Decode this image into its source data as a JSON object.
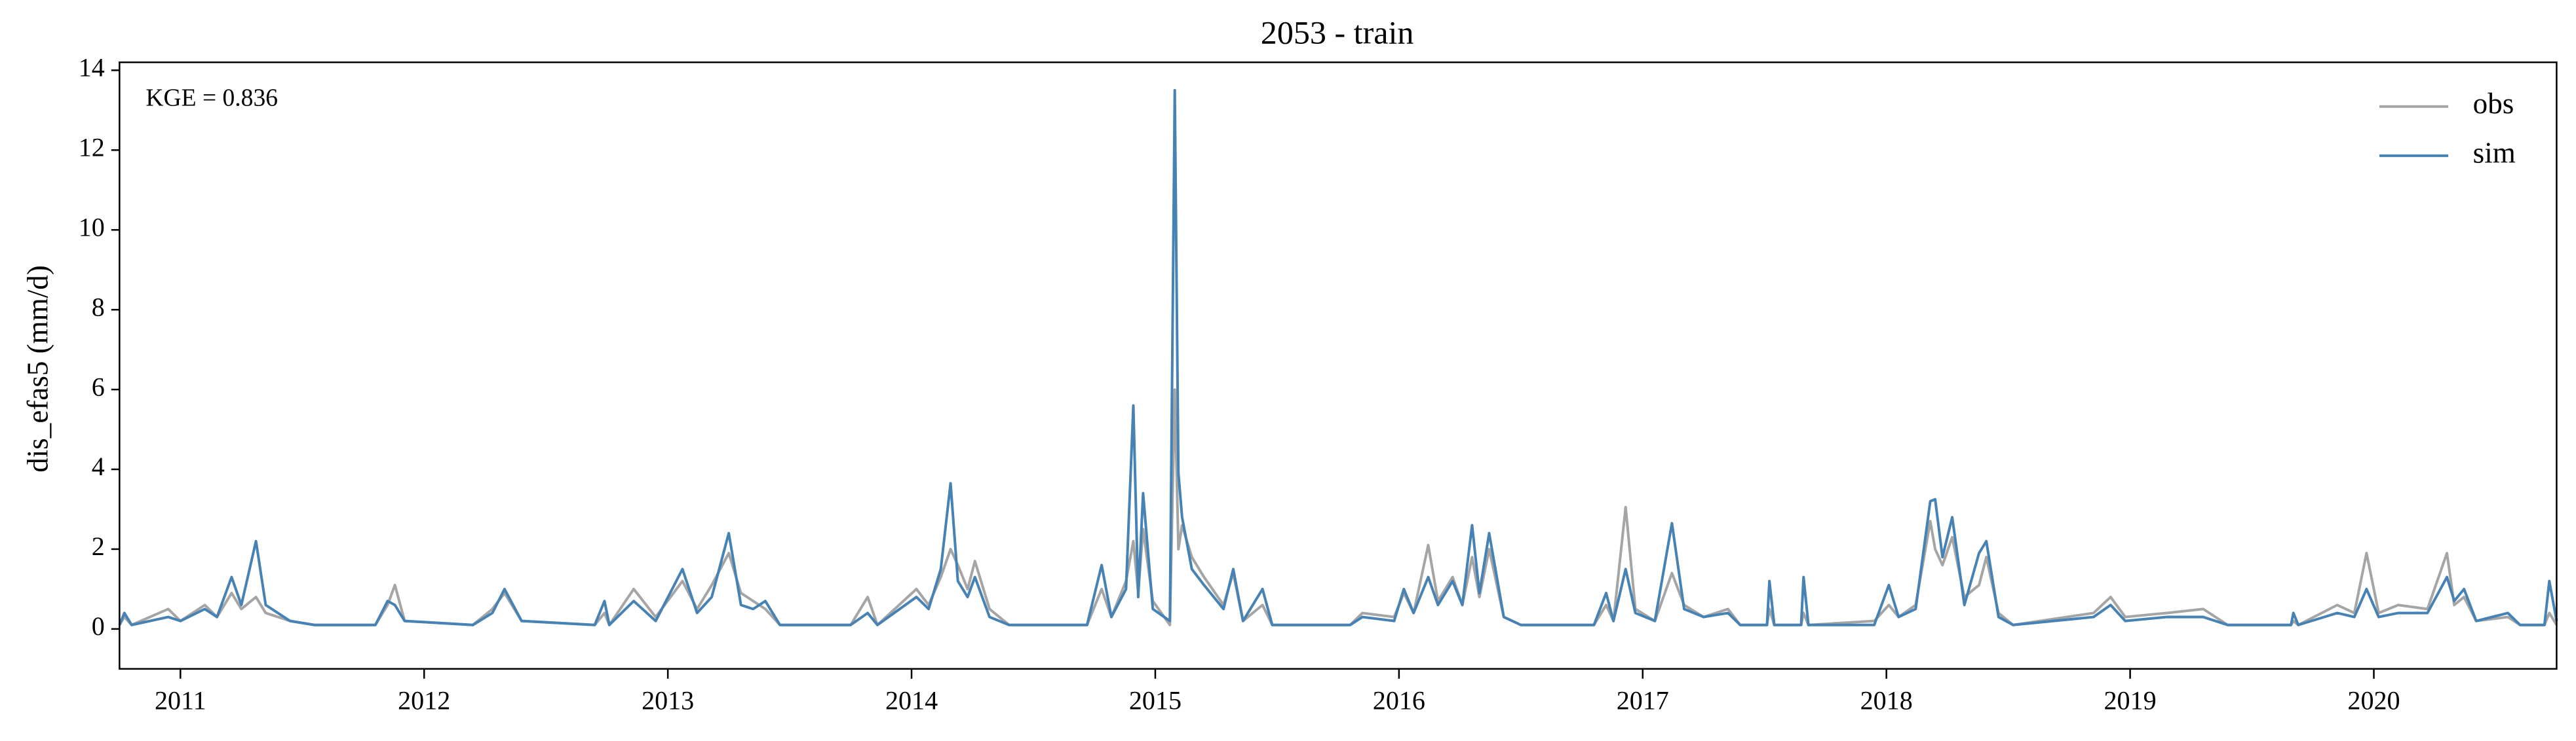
{
  "chart_data": {
    "type": "line",
    "title": "2053 - train",
    "ylabel": "dis_efas5 (mm/d)",
    "annotation": "KGE = 0.836",
    "x": [
      2010.75,
      2010.77,
      2010.8,
      2010.95,
      2011.0,
      2011.1,
      2011.15,
      2011.21,
      2011.25,
      2011.31,
      2011.35,
      2011.45,
      2011.55,
      2011.8,
      2011.85,
      2011.88,
      2011.92,
      2012.2,
      2012.28,
      2012.33,
      2012.4,
      2012.7,
      2012.74,
      2012.76,
      2012.86,
      2012.95,
      2013.06,
      2013.12,
      2013.18,
      2013.25,
      2013.3,
      2013.35,
      2013.4,
      2013.46,
      2013.75,
      2013.82,
      2013.86,
      2014.02,
      2014.07,
      2014.12,
      2014.16,
      2014.19,
      2014.23,
      2014.26,
      2014.32,
      2014.4,
      2014.72,
      2014.78,
      2014.82,
      2014.88,
      2014.91,
      2014.93,
      2014.95,
      2014.99,
      2015.06,
      2015.08,
      2015.095,
      2015.11,
      2015.15,
      2015.2,
      2015.28,
      2015.32,
      2015.36,
      2015.44,
      2015.48,
      2015.8,
      2015.85,
      2015.98,
      2016.02,
      2016.06,
      2016.12,
      2016.16,
      2016.22,
      2016.26,
      2016.3,
      2016.33,
      2016.37,
      2016.43,
      2016.5,
      2016.8,
      2016.85,
      2016.88,
      2016.93,
      2016.97,
      2017.05,
      2017.12,
      2017.17,
      2017.25,
      2017.35,
      2017.4,
      2017.51,
      2017.52,
      2017.54,
      2017.65,
      2017.66,
      2017.68,
      2017.95,
      2018.01,
      2018.05,
      2018.12,
      2018.18,
      2018.2,
      2018.23,
      2018.27,
      2018.32,
      2018.38,
      2018.41,
      2018.46,
      2018.52,
      2018.85,
      2018.92,
      2018.98,
      2019.15,
      2019.3,
      2019.4,
      2019.66,
      2019.67,
      2019.69,
      2019.85,
      2019.92,
      2019.97,
      2020.02,
      2020.1,
      2020.22,
      2020.3,
      2020.33,
      2020.37,
      2020.42,
      2020.55,
      2020.6,
      2020.7,
      2020.72,
      2020.75
    ],
    "series": [
      {
        "name": "obs",
        "color": "#a5a5a5",
        "values": [
          0.1,
          0.3,
          0.1,
          0.5,
          0.2,
          0.6,
          0.3,
          0.9,
          0.5,
          0.8,
          0.4,
          0.2,
          0.1,
          0.1,
          0.6,
          1.1,
          0.2,
          0.1,
          0.5,
          0.9,
          0.2,
          0.1,
          0.4,
          0.1,
          1.0,
          0.3,
          1.2,
          0.5,
          1.1,
          1.9,
          0.9,
          0.7,
          0.5,
          0.1,
          0.1,
          0.8,
          0.1,
          1.0,
          0.6,
          1.3,
          2.0,
          1.6,
          1.0,
          1.7,
          0.5,
          0.1,
          0.1,
          1.0,
          0.3,
          1.2,
          2.2,
          0.9,
          2.5,
          0.7,
          0.1,
          6.0,
          2.0,
          2.6,
          1.8,
          1.3,
          0.6,
          1.4,
          0.2,
          0.6,
          0.1,
          0.1,
          0.4,
          0.3,
          0.9,
          0.4,
          2.1,
          0.7,
          1.3,
          0.6,
          1.8,
          0.8,
          2.0,
          0.3,
          0.1,
          0.1,
          0.6,
          0.2,
          3.05,
          0.5,
          0.2,
          1.4,
          0.6,
          0.3,
          0.5,
          0.1,
          0.1,
          0.5,
          0.1,
          0.1,
          0.4,
          0.1,
          0.2,
          0.6,
          0.3,
          0.6,
          2.7,
          2.0,
          1.6,
          2.3,
          0.8,
          1.1,
          1.8,
          0.4,
          0.1,
          0.4,
          0.8,
          0.3,
          0.4,
          0.5,
          0.1,
          0.1,
          0.2,
          0.1,
          0.6,
          0.4,
          1.9,
          0.4,
          0.6,
          0.5,
          1.9,
          0.6,
          0.8,
          0.2,
          0.3,
          0.1,
          0.1,
          0.4,
          0.1
        ]
      },
      {
        "name": "sim",
        "color": "#4682b4",
        "values": [
          0.1,
          0.4,
          0.1,
          0.3,
          0.2,
          0.5,
          0.3,
          1.3,
          0.6,
          2.2,
          0.6,
          0.2,
          0.1,
          0.1,
          0.7,
          0.6,
          0.2,
          0.1,
          0.4,
          1.0,
          0.2,
          0.1,
          0.7,
          0.1,
          0.7,
          0.2,
          1.5,
          0.4,
          0.8,
          2.4,
          0.6,
          0.5,
          0.7,
          0.1,
          0.1,
          0.4,
          0.1,
          0.8,
          0.5,
          1.5,
          3.65,
          1.2,
          0.8,
          1.3,
          0.3,
          0.1,
          0.1,
          1.6,
          0.3,
          1.0,
          5.6,
          0.8,
          3.4,
          0.5,
          0.2,
          13.5,
          3.9,
          2.8,
          1.5,
          1.1,
          0.5,
          1.5,
          0.2,
          1.0,
          0.1,
          0.1,
          0.3,
          0.2,
          1.0,
          0.4,
          1.3,
          0.6,
          1.2,
          0.6,
          2.6,
          0.9,
          2.4,
          0.3,
          0.1,
          0.1,
          0.9,
          0.2,
          1.5,
          0.4,
          0.2,
          2.65,
          0.5,
          0.3,
          0.4,
          0.1,
          0.1,
          1.2,
          0.1,
          0.1,
          1.3,
          0.1,
          0.1,
          1.1,
          0.3,
          0.5,
          3.2,
          3.25,
          1.8,
          2.8,
          0.6,
          1.9,
          2.2,
          0.3,
          0.1,
          0.3,
          0.6,
          0.2,
          0.3,
          0.3,
          0.1,
          0.1,
          0.4,
          0.1,
          0.4,
          0.3,
          1.0,
          0.3,
          0.4,
          0.4,
          1.3,
          0.7,
          1.0,
          0.2,
          0.4,
          0.1,
          0.1,
          1.2,
          0.2
        ]
      }
    ],
    "xlim": [
      2010.75,
      2020.75
    ],
    "xticks": [
      2011,
      2012,
      2013,
      2014,
      2015,
      2016,
      2017,
      2018,
      2019,
      2020
    ],
    "ylim": [
      -1,
      14.2
    ],
    "yticks": [
      0,
      2,
      4,
      6,
      8,
      10,
      12,
      14
    ],
    "legend": "upper right",
    "grid": false
  }
}
